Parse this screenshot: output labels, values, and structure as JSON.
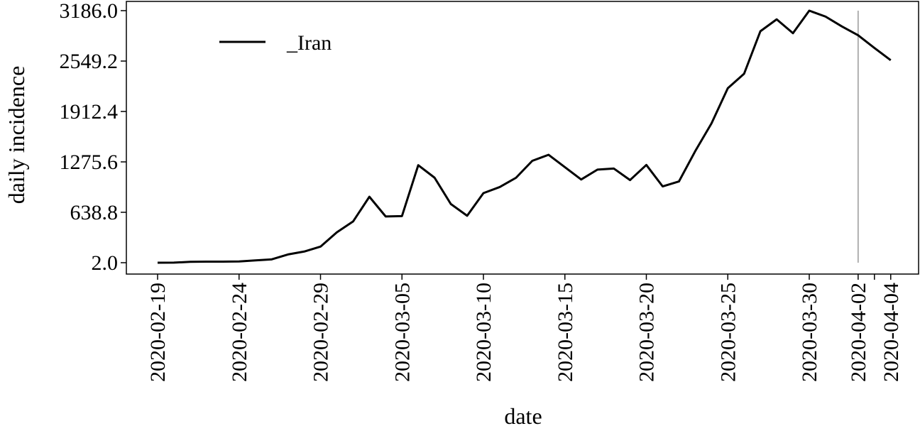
{
  "chart_data": {
    "type": "line",
    "title": "",
    "xlabel": "date",
    "ylabel": "daily incidence",
    "ylim": [
      2.0,
      3186.0
    ],
    "y_ticks": [
      "2.0",
      "638.8",
      "1275.6",
      "1912.4",
      "2549.2",
      "3186.0"
    ],
    "x_tick_labels": [
      "2020-02-19",
      "2020-02-24",
      "2020-02-29",
      "2020-03-05",
      "2020-03-10",
      "2020-03-15",
      "2020-03-20",
      "2020-03-25",
      "2020-03-30",
      "2020-04-02",
      "2020-04-04"
    ],
    "x_tick_dates": [
      "2020-02-19",
      "2020-02-24",
      "2020-02-29",
      "2020-03-05",
      "2020-03-10",
      "2020-03-15",
      "2020-03-20",
      "2020-03-25",
      "2020-03-30",
      "2020-04-02",
      "2020-04-03",
      "2020-04-04"
    ],
    "reference_line_date": "2020-04-02",
    "grid": false,
    "legend_position": "top-left",
    "series": [
      {
        "name": "_Iran",
        "color": "#000000",
        "x": [
          "2020-02-19",
          "2020-02-20",
          "2020-02-21",
          "2020-02-22",
          "2020-02-23",
          "2020-02-24",
          "2020-02-25",
          "2020-02-26",
          "2020-02-27",
          "2020-02-28",
          "2020-02-29",
          "2020-03-01",
          "2020-03-02",
          "2020-03-03",
          "2020-03-04",
          "2020-03-05",
          "2020-03-06",
          "2020-03-07",
          "2020-03-08",
          "2020-03-09",
          "2020-03-10",
          "2020-03-11",
          "2020-03-12",
          "2020-03-13",
          "2020-03-14",
          "2020-03-15",
          "2020-03-16",
          "2020-03-17",
          "2020-03-18",
          "2020-03-19",
          "2020-03-20",
          "2020-03-21",
          "2020-03-22",
          "2020-03-23",
          "2020-03-24",
          "2020-03-25",
          "2020-03-26",
          "2020-03-27",
          "2020-03-28",
          "2020-03-29",
          "2020-03-30",
          "2020-03-31",
          "2020-04-01",
          "2020-04-02",
          "2020-04-03",
          "2020-04-04"
        ],
        "values": [
          2,
          3,
          13,
          15,
          15,
          18,
          31,
          44,
          106,
          143,
          205,
          385,
          523,
          835,
          586,
          591,
          1234,
          1076,
          743,
          595,
          881,
          958,
          1075,
          1289,
          1365,
          1209,
          1053,
          1178,
          1192,
          1046,
          1237,
          966,
          1028,
          1411,
          1762,
          2206,
          2389,
          2926,
          3076,
          2901,
          3186,
          3111,
          2987,
          2875,
          2715,
          2560
        ]
      }
    ]
  }
}
